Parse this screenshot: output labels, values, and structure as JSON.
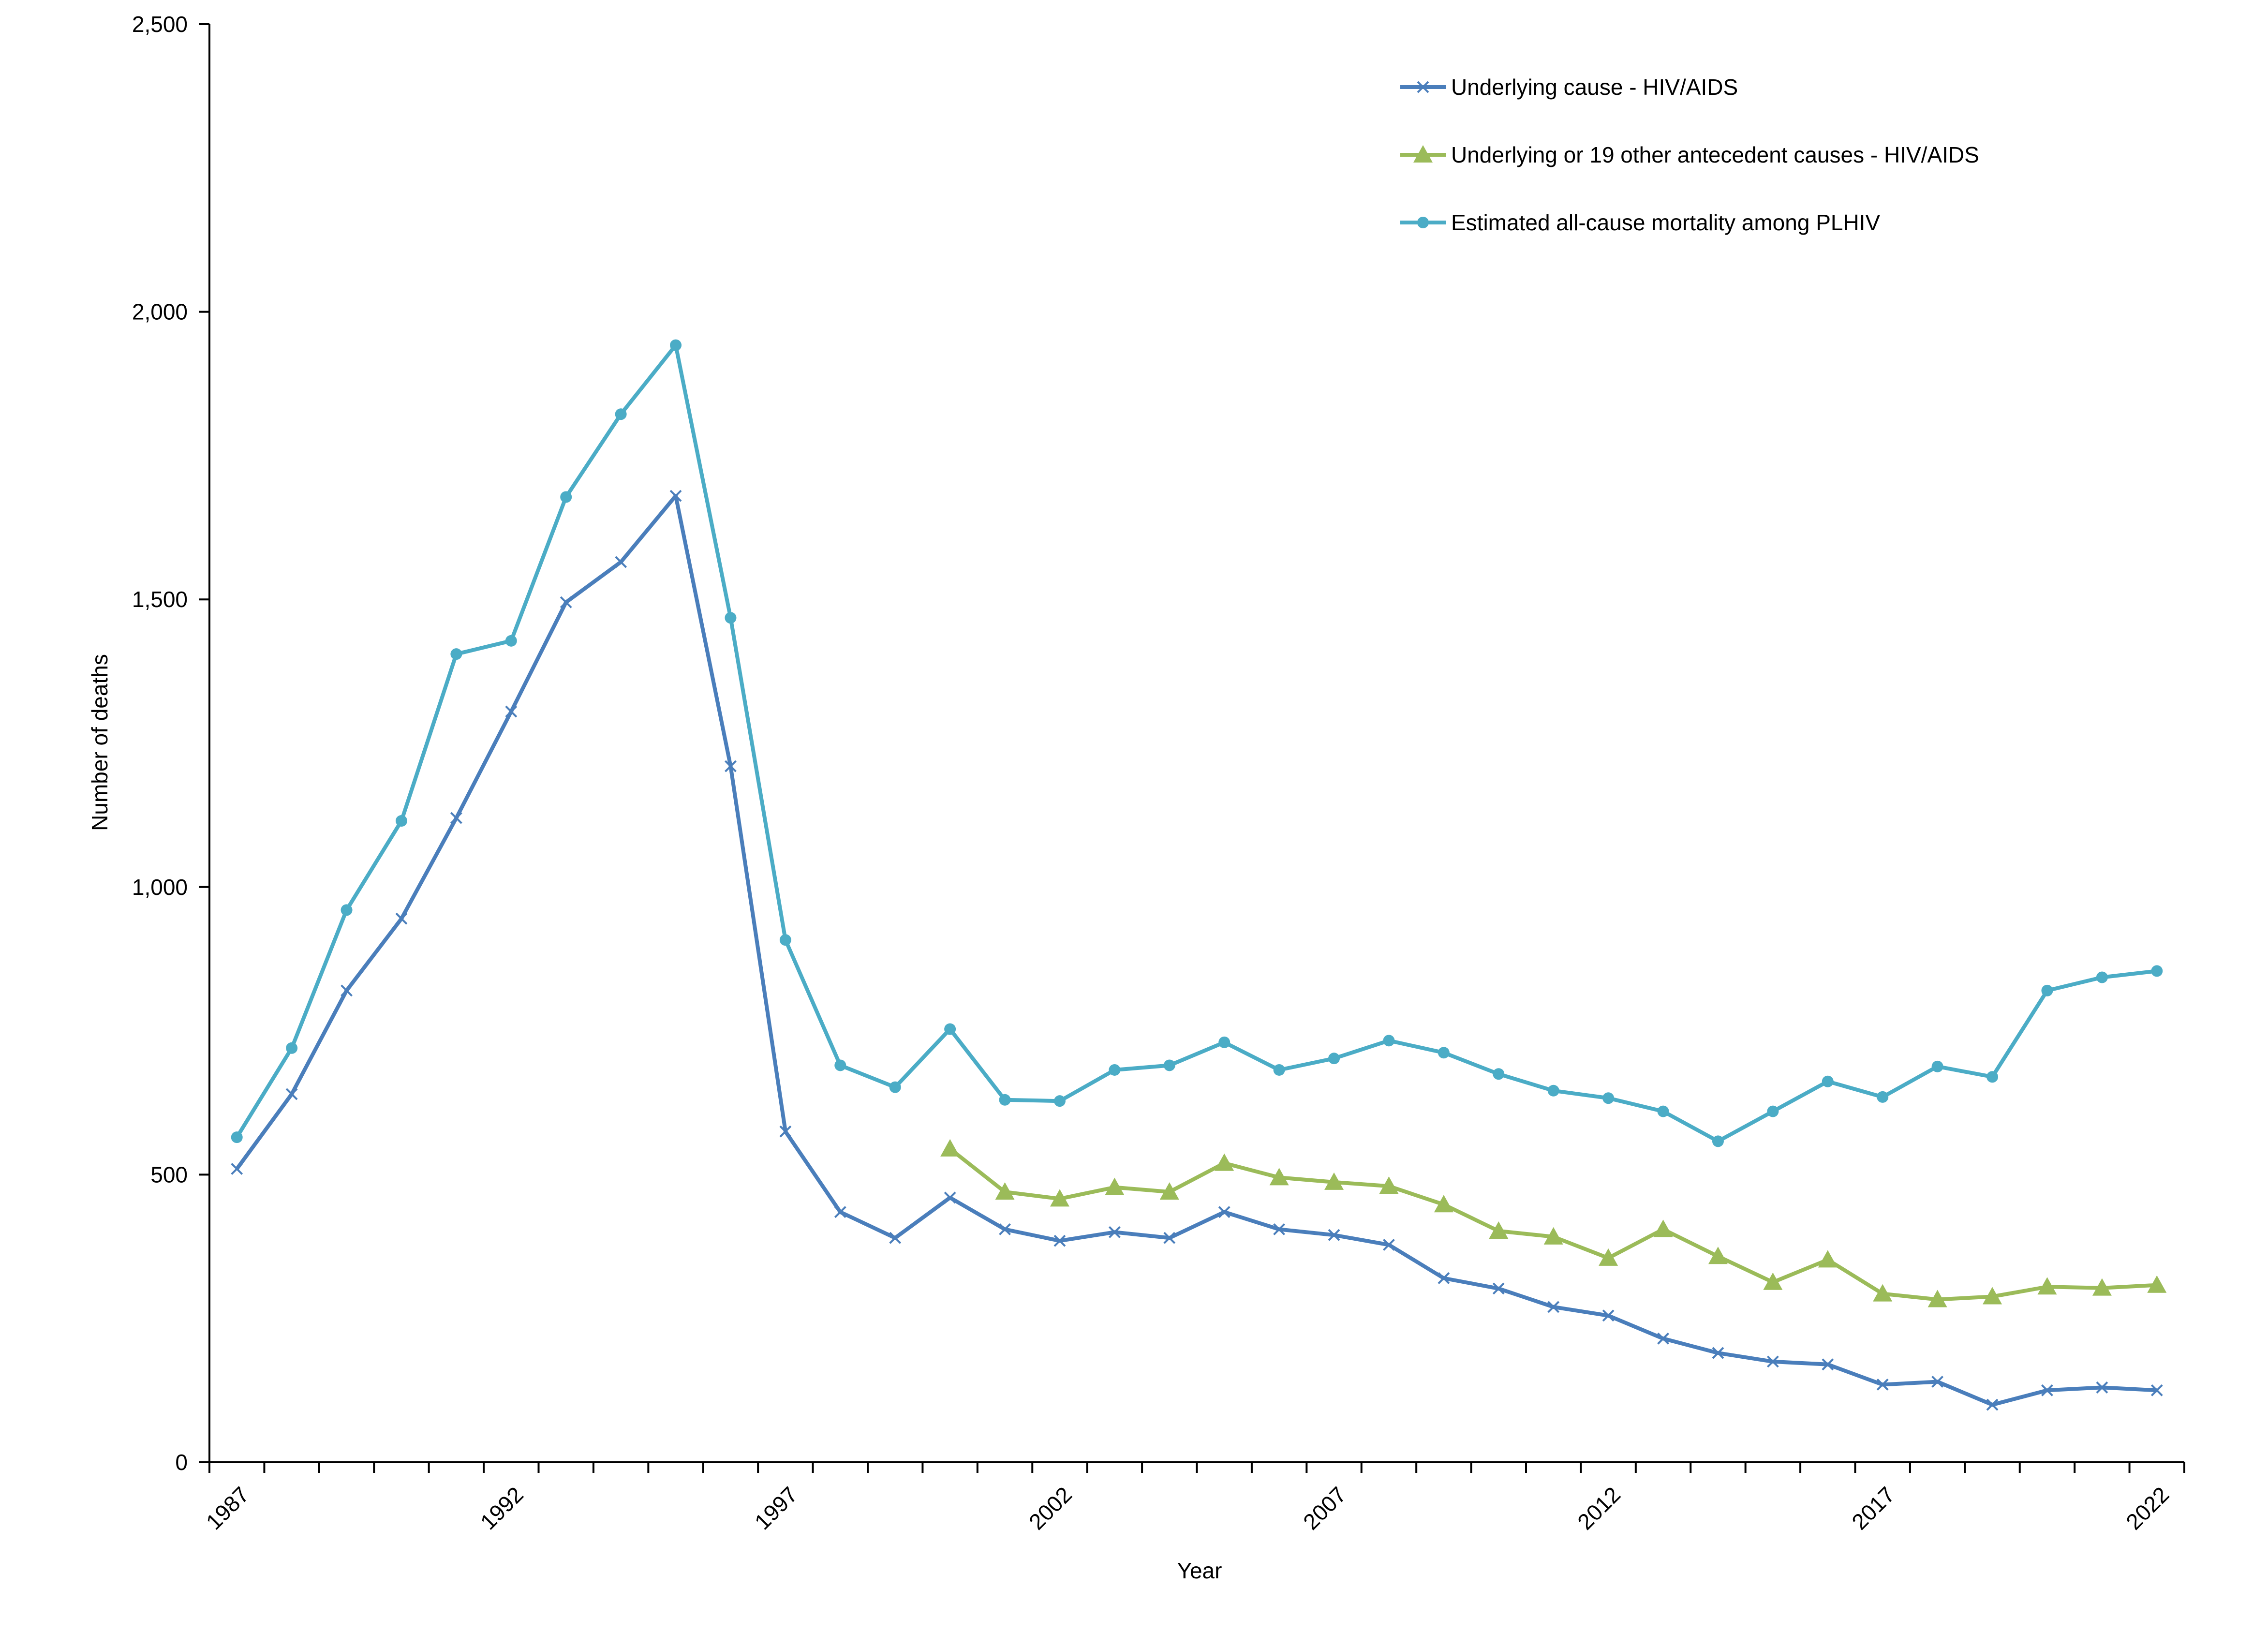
{
  "chart_data": {
    "type": "line",
    "title": "",
    "xlabel": "Year",
    "ylabel": "Number of deaths",
    "xlim": [
      1987,
      2022
    ],
    "ylim": [
      0,
      2500
    ],
    "yticks": [
      0,
      500,
      1000,
      1500,
      2000,
      2500
    ],
    "ytick_labels": [
      "0",
      "500",
      "1,000",
      "1,500",
      "2,000",
      "2,500"
    ],
    "xtick_labels": [
      "1987",
      "1992",
      "1997",
      "2002",
      "2007",
      "2012",
      "2017",
      "2022"
    ],
    "xtick_values": [
      1987,
      1992,
      1997,
      2002,
      2007,
      2012,
      2017,
      2022
    ],
    "grid": false,
    "legend_position": "top-right",
    "series": [
      {
        "name": "Underlying cause - HIV/AIDS",
        "color": "#4a7ebb",
        "marker": "x",
        "x": [
          1987,
          1988,
          1989,
          1990,
          1991,
          1992,
          1993,
          1994,
          1995,
          1996,
          1997,
          1998,
          1999,
          2000,
          2001,
          2002,
          2003,
          2004,
          2005,
          2006,
          2007,
          2008,
          2009,
          2010,
          2011,
          2012,
          2013,
          2014,
          2015,
          2016,
          2017,
          2018,
          2019,
          2020,
          2021,
          2022
        ],
        "values": [
          510,
          640,
          820,
          945,
          1120,
          1305,
          1495,
          1565,
          1680,
          1210,
          575,
          435,
          390,
          460,
          405,
          385,
          400,
          390,
          435,
          405,
          395,
          378,
          320,
          302,
          270,
          255,
          215,
          190,
          175,
          170,
          135,
          140,
          100,
          125,
          130,
          125
        ]
      },
      {
        "name": "Underlying or 19 other antecedent causes - HIV/AIDS",
        "color": "#9bbb59",
        "marker": "triangle",
        "x": [
          2000,
          2001,
          2002,
          2003,
          2004,
          2005,
          2006,
          2007,
          2008,
          2009,
          2010,
          2011,
          2012,
          2013,
          2014,
          2015,
          2016,
          2017,
          2018,
          2019,
          2020,
          2021,
          2022
        ],
        "values": [
          545,
          470,
          458,
          478,
          470,
          520,
          495,
          487,
          480,
          448,
          402,
          392,
          355,
          405,
          358,
          313,
          352,
          293,
          283,
          288,
          305,
          303,
          308
        ]
      },
      {
        "name": "Estimated all-cause mortality among PLHIV",
        "color": "#4bacc6",
        "marker": "circle",
        "x": [
          1987,
          1988,
          1989,
          1990,
          1991,
          1992,
          1993,
          1994,
          1995,
          1996,
          1997,
          1998,
          1999,
          2000,
          2001,
          2002,
          2003,
          2004,
          2005,
          2006,
          2007,
          2008,
          2009,
          2010,
          2011,
          2012,
          2013,
          2014,
          2015,
          2016,
          2017,
          2018,
          2019,
          2020,
          2021,
          2022
        ],
        "values": [
          565,
          720,
          960,
          1115,
          1405,
          1428,
          1678,
          1822,
          1942,
          1468,
          908,
          690,
          652,
          753,
          630,
          628,
          682,
          690,
          730,
          682,
          702,
          733,
          712,
          675,
          646,
          633,
          610,
          558,
          610,
          662,
          635,
          688,
          670,
          820,
          843,
          854
        ]
      }
    ]
  }
}
